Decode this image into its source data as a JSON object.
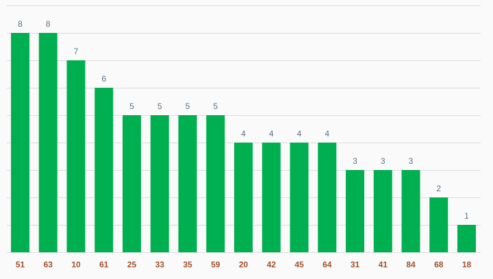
{
  "chart_data": {
    "type": "bar",
    "categories": [
      "51",
      "63",
      "10",
      "61",
      "25",
      "33",
      "35",
      "59",
      "20",
      "42",
      "45",
      "64",
      "31",
      "41",
      "84",
      "68",
      "18"
    ],
    "values": [
      8,
      8,
      7,
      6,
      5,
      5,
      5,
      5,
      4,
      4,
      4,
      4,
      3,
      3,
      3,
      2,
      1
    ],
    "ylim": [
      0,
      9
    ],
    "grid": true,
    "bar_color": "#00b050",
    "data_label_color": "#5a7184",
    "category_label_color": "#a0522d",
    "gridline_color": "#dcdcdc",
    "title": "",
    "xlabel": "",
    "ylabel": ""
  }
}
